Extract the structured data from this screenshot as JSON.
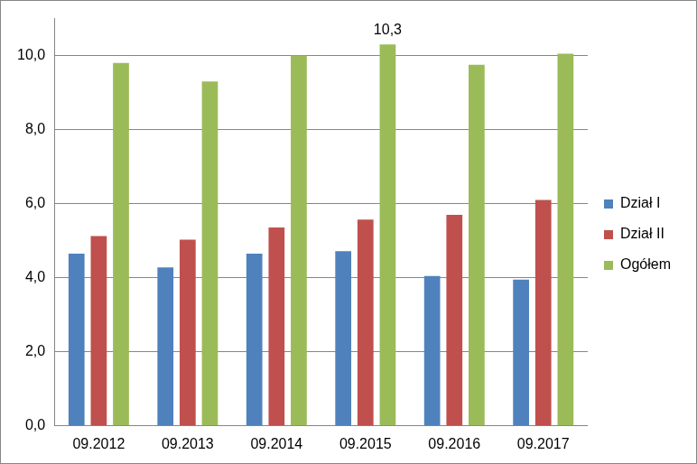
{
  "chart_data": {
    "type": "bar",
    "categories": [
      "09.2012",
      "09.2013",
      "09.2014",
      "09.2015",
      "09.2016",
      "09.2017"
    ],
    "series": [
      {
        "name": "Dział I",
        "color": "#4f81bd",
        "values": [
          4.65,
          4.28,
          4.65,
          4.72,
          4.05,
          3.95
        ]
      },
      {
        "name": "Dział II",
        "color": "#c0504d",
        "values": [
          5.13,
          5.03,
          5.36,
          5.57,
          5.7,
          6.1
        ]
      },
      {
        "name": "Ogółem",
        "color": "#9bbb59",
        "values": [
          9.8,
          9.3,
          10.0,
          10.3,
          9.75,
          10.05
        ]
      }
    ],
    "ylim": [
      0,
      11
    ],
    "yticks": [
      {
        "value": 0,
        "label": "0,0"
      },
      {
        "value": 2,
        "label": "2,0"
      },
      {
        "value": 4,
        "label": "4,0"
      },
      {
        "value": 6,
        "label": "6,0"
      },
      {
        "value": 8,
        "label": "8,0"
      },
      {
        "value": 10,
        "label": "10,0"
      }
    ],
    "annotations": [
      {
        "text": "10,3",
        "category": "09.2015",
        "series": "Ogółem",
        "value": 10.3
      }
    ],
    "grid": true,
    "legend": "right",
    "stacked": false,
    "data_labels": false
  }
}
